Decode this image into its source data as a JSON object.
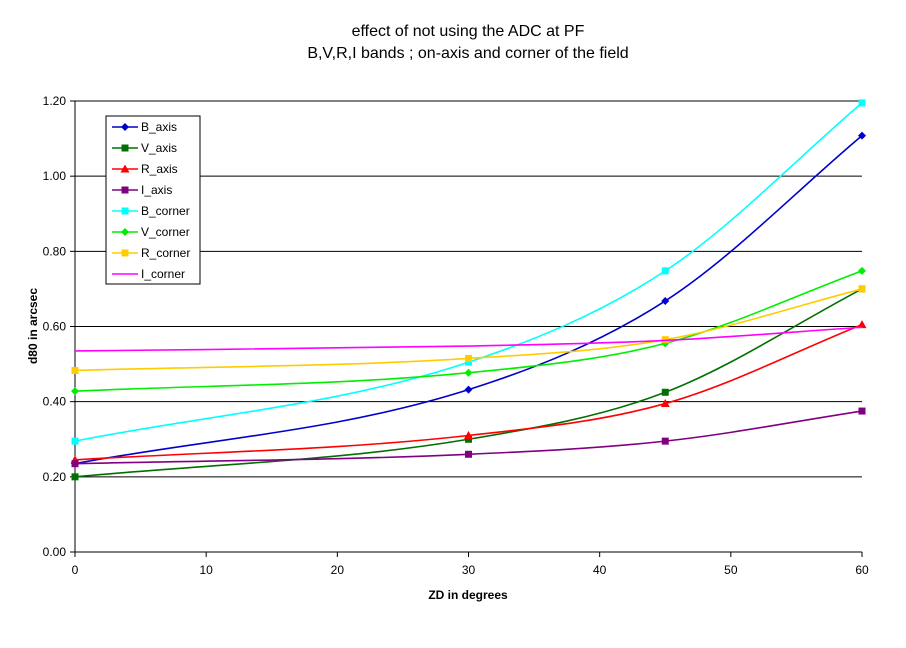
{
  "chart_data": {
    "type": "line",
    "title_lines": [
      "effect of not using the ADC at PF",
      "B,V,R,I bands ; on-axis and corner of the field"
    ],
    "xlabel": "ZD in degrees",
    "ylabel": "d80 in arcsec",
    "xlim": [
      0,
      60
    ],
    "ylim": [
      0,
      1.2
    ],
    "x_ticks": [
      "0",
      "10",
      "20",
      "30",
      "40",
      "50",
      "60"
    ],
    "y_ticks": [
      "0.00",
      "0.20",
      "0.40",
      "0.60",
      "0.80",
      "1.00",
      "1.20"
    ],
    "grid": "horizontal",
    "legend_position": "top-left",
    "x": [
      0,
      30,
      45,
      60
    ],
    "series": [
      {
        "name": "B_axis",
        "color": "#0000cc",
        "marker": "diamond",
        "values": [
          0.235,
          0.432,
          0.668,
          1.108
        ]
      },
      {
        "name": "V_axis",
        "color": "#007000",
        "marker": "square",
        "values": [
          0.2,
          0.3,
          0.425,
          0.7
        ]
      },
      {
        "name": "R_axis",
        "color": "#ff0000",
        "marker": "triangle",
        "values": [
          0.245,
          0.31,
          0.395,
          0.605
        ]
      },
      {
        "name": "I_axis",
        "color": "#800080",
        "marker": "square",
        "values": [
          0.235,
          0.26,
          0.295,
          0.375
        ]
      },
      {
        "name": "B_corner",
        "color": "#00ffff",
        "marker": "square",
        "values": [
          0.295,
          0.505,
          0.748,
          1.195
        ]
      },
      {
        "name": "V_corner",
        "color": "#00ee00",
        "marker": "diamond",
        "values": [
          0.428,
          0.477,
          0.555,
          0.748
        ]
      },
      {
        "name": "R_corner",
        "color": "#ffcc00",
        "marker": "square",
        "values": [
          0.483,
          0.515,
          0.565,
          0.7
        ]
      },
      {
        "name": "I_corner",
        "color": "#ff00ff",
        "marker": "none",
        "values": [
          0.535,
          0.548,
          0.563,
          0.598
        ]
      }
    ]
  }
}
